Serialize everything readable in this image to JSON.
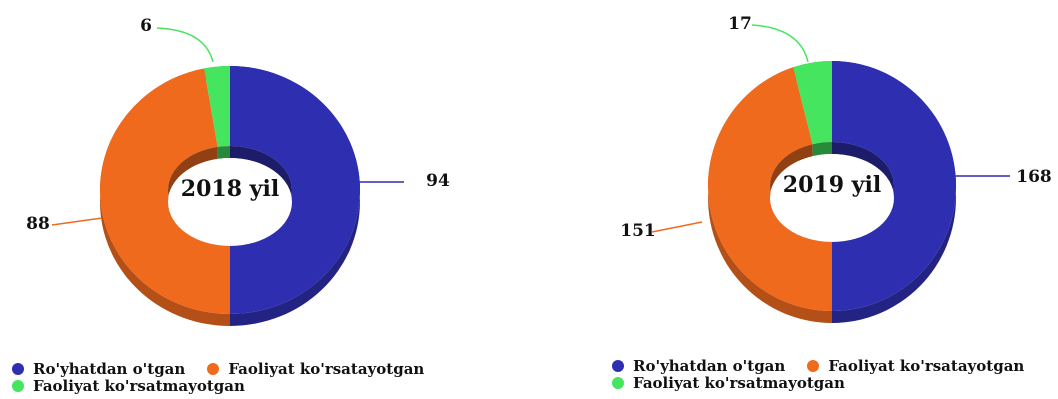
{
  "chart_data": [
    {
      "type": "pie",
      "variant": "3d-donut",
      "center_label": "2018 yil",
      "slices": [
        {
          "label": "Ro'yhatdan o'tgan",
          "value": 94,
          "color": "#2e2fb0"
        },
        {
          "label": "Faoliyat ko'rsatayotgan",
          "value": 88,
          "color": "#f06a1e"
        },
        {
          "label": "Faoliyat ko'rsatmayotgan",
          "value": 6,
          "color": "#45e560"
        }
      ]
    },
    {
      "type": "pie",
      "variant": "3d-donut",
      "center_label": "2019 yil",
      "slices": [
        {
          "label": "Ro'yhatdan o'tgan",
          "value": 168,
          "color": "#2e2fb0"
        },
        {
          "label": "Faoliyat ko'rsatayotgan",
          "value": 151,
          "color": "#f06a1e"
        },
        {
          "label": "Faoliyat ko'rsatmayotgan",
          "value": 17,
          "color": "#45e560"
        }
      ]
    }
  ],
  "legends": [
    {
      "items": [
        {
          "label": "Ro'yhatdan o'tgan",
          "color": "#2e2fb0"
        },
        {
          "label": "Faoliyat ko'rsatayotgan",
          "color": "#f06a1e"
        },
        {
          "label": "Faoliyat ko'rsatmayotgan",
          "color": "#45e560"
        }
      ]
    },
    {
      "items": [
        {
          "label": "Ro'yhatdan o'tgan",
          "color": "#2e2fb0"
        },
        {
          "label": "Faoliyat ko'rsatayotgan",
          "color": "#f06a1e"
        },
        {
          "label": "Faoliyat ko'rsatmayotgan",
          "color": "#45e560"
        }
      ]
    }
  ]
}
